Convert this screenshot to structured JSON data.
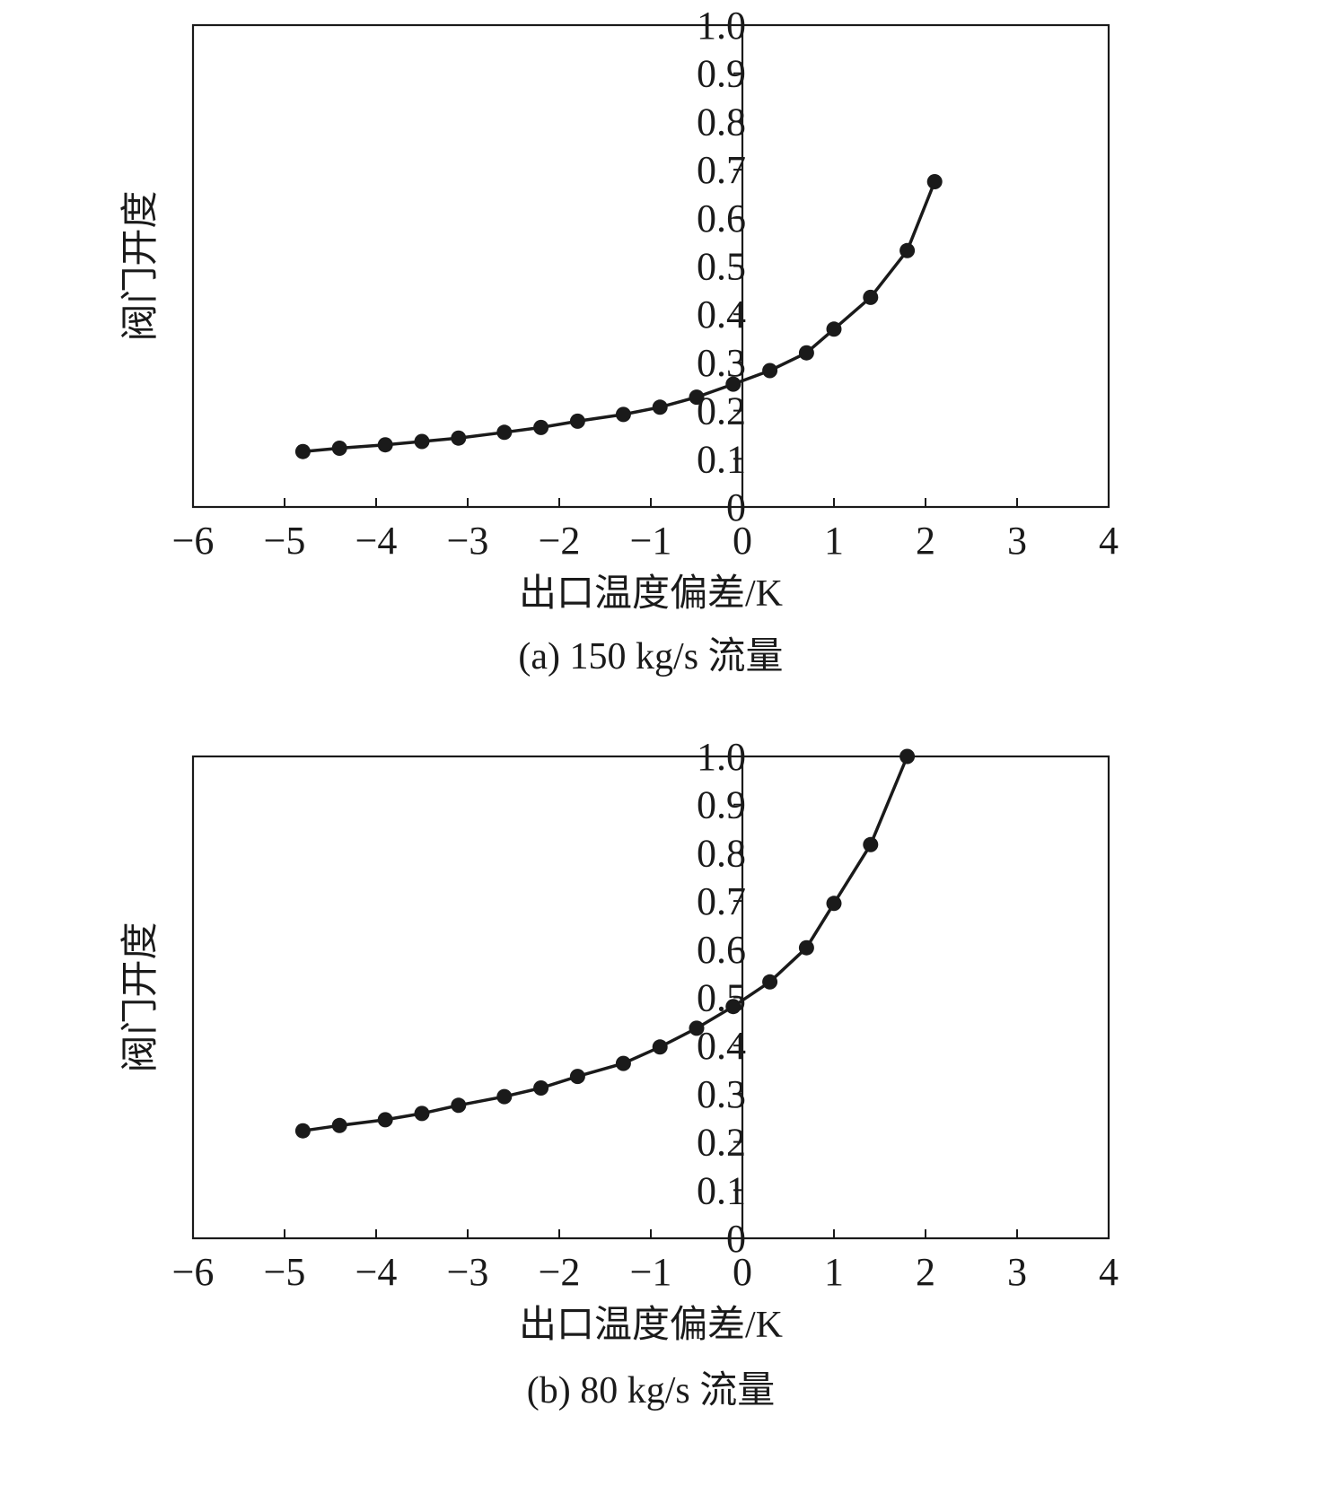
{
  "chart_data": [
    {
      "type": "line",
      "xlabel": "出口温度偏差/K",
      "ylabel": "阀门开度",
      "caption": "(a) 150 kg/s 流量",
      "xlim": [
        -6,
        4
      ],
      "ylim": [
        0,
        1.0
      ],
      "xticks": [
        "−6",
        "−5",
        "−4",
        "−3",
        "−2",
        "−1",
        "0",
        "1",
        "2",
        "3",
        "4"
      ],
      "yticks": [
        "0",
        "0.1",
        "0.2",
        "0.3",
        "0.4",
        "0.5",
        "0.6",
        "0.7",
        "0.8",
        "0.9",
        "1.0"
      ],
      "series": [
        {
          "x": [
            -4.8,
            -4.4,
            -3.9,
            -3.5,
            -3.1,
            -2.6,
            -2.2,
            -1.8,
            -1.3,
            -0.9,
            -0.5,
            -0.1,
            0.3,
            0.7,
            1.0,
            1.4,
            1.8,
            2.1
          ],
          "y": [
            0.115,
            0.122,
            0.129,
            0.136,
            0.143,
            0.155,
            0.165,
            0.178,
            0.192,
            0.207,
            0.228,
            0.255,
            0.283,
            0.32,
            0.369,
            0.435,
            0.532,
            0.675
          ]
        }
      ]
    },
    {
      "type": "line",
      "xlabel": "出口温度偏差/K",
      "ylabel": "阀门开度",
      "caption": "(b) 80 kg/s 流量",
      "xlim": [
        -6,
        4
      ],
      "ylim": [
        0,
        1.0
      ],
      "xticks": [
        "−6",
        "−5",
        "−4",
        "−3",
        "−2",
        "−1",
        "0",
        "1",
        "2",
        "3",
        "4"
      ],
      "yticks": [
        "0",
        "0.1",
        "0.2",
        "0.3",
        "0.4",
        "0.5",
        "0.6",
        "0.7",
        "0.8",
        "0.9",
        "1.0"
      ],
      "series": [
        {
          "x": [
            -4.8,
            -4.4,
            -3.9,
            -3.5,
            -3.1,
            -2.6,
            -2.2,
            -1.8,
            -1.3,
            -0.9,
            -0.5,
            -0.1,
            0.3,
            0.7,
            1.0,
            1.4,
            1.8
          ],
          "y": [
            0.223,
            0.234,
            0.246,
            0.259,
            0.276,
            0.294,
            0.312,
            0.336,
            0.363,
            0.397,
            0.436,
            0.481,
            0.532,
            0.603,
            0.695,
            0.817,
            1.0
          ]
        }
      ]
    }
  ]
}
